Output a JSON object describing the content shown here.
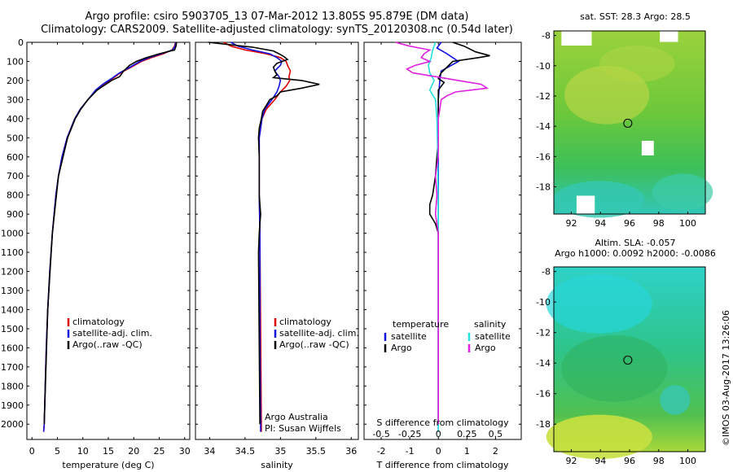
{
  "header": {
    "title_line1": "Argo profile: csiro 5903705_13 07-Mar-2012 13.805S 95.879E (DM data)",
    "title_line2": "Climatology: CARS2009. Satellite-adjusted climatology: synTS_20120308.nc (0.54d later)"
  },
  "colors": {
    "climatology": "#e00000",
    "satellite": "#1010e0",
    "argo": "#000000",
    "sal_satellite": "#20e0e0",
    "sal_argo": "#e020e0"
  },
  "chart_data": [
    {
      "id": "temperature",
      "type": "line",
      "xlabel": "temperature (deg C)",
      "ylabel": "",
      "xlim": [
        -1,
        31
      ],
      "ylim": [
        2080,
        0
      ],
      "y_reversed": true,
      "xticks": [
        0,
        5,
        10,
        15,
        20,
        25,
        30
      ],
      "yticks": [
        0,
        100,
        200,
        300,
        400,
        500,
        600,
        700,
        800,
        900,
        1000,
        1100,
        1200,
        1300,
        1400,
        1500,
        1600,
        1700,
        1800,
        1900,
        2000
      ],
      "legend": [
        "climatology",
        "satellite-adj. clim.",
        "Argo(..raw -QC)"
      ],
      "series": [
        {
          "name": "climatology",
          "depth": [
            0,
            20,
            40,
            60,
            80,
            100,
            130,
            160,
            190,
            220,
            250,
            300,
            350,
            400,
            500,
            600,
            700,
            800,
            1000,
            1200,
            1400,
            1600,
            1800,
            2000,
            2040
          ],
          "values": [
            28.2,
            28.0,
            27.5,
            25.8,
            23.5,
            21.5,
            19.5,
            17.4,
            15.8,
            14.0,
            12.6,
            11.0,
            9.5,
            8.4,
            6.9,
            5.9,
            5.2,
            4.7,
            4.0,
            3.5,
            3.1,
            2.8,
            2.6,
            2.4,
            2.3
          ]
        },
        {
          "name": "satellite-adj. clim.",
          "depth": [
            0,
            20,
            40,
            60,
            80,
            100,
            130,
            160,
            190,
            220,
            250,
            300,
            350,
            400,
            500,
            600,
            700,
            800,
            1000,
            1200,
            1400,
            1600,
            1800,
            2000,
            2040
          ],
          "values": [
            28.3,
            28.1,
            27.6,
            25.4,
            23.0,
            21.2,
            19.3,
            17.2,
            15.6,
            13.9,
            12.5,
            11.0,
            9.5,
            8.4,
            6.9,
            5.9,
            5.2,
            4.7,
            4.0,
            3.5,
            3.1,
            2.8,
            2.6,
            2.4,
            2.3
          ]
        },
        {
          "name": "Argo(..raw -QC)",
          "depth": [
            0,
            20,
            40,
            60,
            80,
            100,
            120,
            150,
            180,
            200,
            250,
            300,
            350,
            400,
            500,
            700,
            1000,
            1400,
            2000
          ],
          "values": [
            28.4,
            28.3,
            28.0,
            25.0,
            22.5,
            20.5,
            19.2,
            18.0,
            17.2,
            15.6,
            12.8,
            11.0,
            9.6,
            8.5,
            7.0,
            5.2,
            4.0,
            3.1,
            2.4
          ]
        }
      ]
    },
    {
      "id": "salinity",
      "type": "line",
      "xlabel": "salinity",
      "ylabel": "",
      "xlim": [
        33.8,
        36.1
      ],
      "ylim": [
        2080,
        0
      ],
      "y_reversed": true,
      "xticks": [
        34,
        34.5,
        35,
        35.5,
        36
      ],
      "legend": [
        "climatology",
        "satellite-adj. clim.",
        "Argo(..raw -QC)"
      ],
      "annotation": [
        "Argo Australia",
        "PI: Susan Wijffels"
      ],
      "series": [
        {
          "name": "climatology",
          "depth": [
            0,
            20,
            40,
            60,
            80,
            100,
            120,
            150,
            180,
            200,
            230,
            260,
            300,
            350,
            400,
            450,
            500,
            600,
            800,
            1000,
            1500,
            2000,
            2040
          ],
          "values": [
            34.2,
            34.3,
            34.5,
            34.8,
            35.0,
            35.08,
            35.1,
            35.14,
            35.12,
            35.13,
            35.08,
            35.0,
            34.92,
            34.8,
            34.74,
            34.72,
            34.7,
            34.7,
            34.7,
            34.71,
            34.72,
            34.73,
            34.73
          ]
        },
        {
          "name": "satellite-adj. clim.",
          "depth": [
            0,
            20,
            40,
            60,
            80,
            100,
            120,
            150,
            180,
            200,
            230,
            260,
            300,
            350,
            400,
            450,
            500,
            600,
            800,
            1000,
            1500,
            2000,
            2040
          ],
          "values": [
            34.3,
            34.4,
            34.6,
            34.85,
            34.95,
            35.02,
            35.0,
            34.92,
            34.98,
            35.0,
            34.98,
            34.95,
            34.88,
            34.78,
            34.74,
            34.72,
            34.7,
            34.7,
            34.7,
            34.71,
            34.71,
            34.72,
            34.72
          ]
        },
        {
          "name": "Argo(..raw -QC)",
          "depth": [
            0,
            25,
            45,
            60,
            75,
            90,
            110,
            130,
            150,
            170,
            185,
            200,
            220,
            240,
            260,
            280,
            300,
            330,
            360,
            400,
            450,
            500,
            600,
            800,
            900,
            1000,
            1100,
            2000
          ],
          "values": [
            33.98,
            34.6,
            34.9,
            34.98,
            35.05,
            35.1,
            34.95,
            34.9,
            34.92,
            34.95,
            34.9,
            35.3,
            35.55,
            35.3,
            35.0,
            34.95,
            34.85,
            34.8,
            34.75,
            34.73,
            34.7,
            34.69,
            34.7,
            34.7,
            34.72,
            34.7,
            34.69,
            34.71
          ]
        }
      ]
    },
    {
      "id": "differences",
      "type": "line",
      "xlabel": "T difference from climatology",
      "ylabel": "",
      "xlim": [
        -2.6,
        2.9
      ],
      "ylim": [
        2080,
        0
      ],
      "y_reversed": true,
      "xticks": [
        -2,
        -1,
        0,
        1,
        2
      ],
      "top_axis_label": "S difference from climatology",
      "top_ticks": [
        "-0.5",
        "-0.25",
        "0",
        "0.25",
        "0.5"
      ],
      "top_tick_values": [
        -2,
        -1,
        0,
        1,
        2
      ],
      "legend_headers": [
        "temperature",
        "salinity"
      ],
      "legend": [
        "satellite",
        "Argo",
        "satellite",
        "Argo"
      ],
      "series": [
        {
          "name": "temperature satellite",
          "depth": [
            0,
            30,
            60,
            100,
            150,
            200,
            300,
            500,
            800,
            1200,
            2000,
            2040
          ],
          "values": [
            0.1,
            -0.05,
            0.3,
            0.7,
            0.1,
            0.05,
            0.0,
            0.0,
            0.0,
            0.0,
            0.0,
            0.0
          ]
        },
        {
          "name": "temperature Argo",
          "depth": [
            0,
            20,
            50,
            70,
            80,
            100,
            130,
            160,
            190,
            210,
            230,
            250,
            300,
            400,
            500,
            700,
            800,
            850,
            900,
            950,
            1000,
            1100,
            1300,
            1600,
            2000
          ],
          "values": [
            0.5,
            0.9,
            1.3,
            1.8,
            1.4,
            0.5,
            0.3,
            0.1,
            0.0,
            0.2,
            0.1,
            0.0,
            0.0,
            0.0,
            0.0,
            -0.1,
            -0.2,
            -0.3,
            -0.3,
            -0.1,
            0.0,
            0.0,
            0.0,
            0.0,
            0.0
          ]
        },
        {
          "name": "salinity satellite",
          "depth": [
            0,
            40,
            80,
            120,
            160,
            200,
            250,
            300,
            400,
            600,
            900,
            1200,
            1600,
            2000,
            2040
          ],
          "values": [
            -0.1,
            -0.2,
            -0.25,
            -0.35,
            -0.3,
            -0.15,
            -0.3,
            -0.1,
            -0.05,
            -0.02,
            0.0,
            0.0,
            0.0,
            0.0,
            0.0
          ]
        },
        {
          "name": "salinity Argo",
          "depth": [
            0,
            20,
            40,
            60,
            80,
            100,
            120,
            140,
            160,
            180,
            200,
            220,
            240,
            260,
            280,
            300,
            350,
            400,
            500,
            600,
            700,
            800,
            900,
            1000,
            1100,
            1300,
            1600,
            2000
          ],
          "values": [
            -1.5,
            -1.0,
            -0.3,
            -0.5,
            -0.6,
            -0.3,
            -0.8,
            -1.1,
            -0.9,
            -0.1,
            0.7,
            1.5,
            1.7,
            0.6,
            0.3,
            0.1,
            0.05,
            0.0,
            0.0,
            0.0,
            -0.1,
            -0.05,
            -0.1,
            0.0,
            0.0,
            0.0,
            0.0,
            0.0
          ]
        }
      ]
    }
  ],
  "maps": [
    {
      "id": "sst",
      "title_lines": [
        "sat. SST: 28.3 Argo: 28.5"
      ],
      "xticks": [
        "92",
        "94",
        "96",
        "98",
        "100"
      ],
      "yticks": [
        "-8",
        "-10",
        "-12",
        "-14",
        "-16",
        "-18"
      ],
      "marker": {
        "lon": 95.88,
        "lat": -13.8
      }
    },
    {
      "id": "sla",
      "title_lines": [
        "Altim. SLA: -0.057",
        "Argo h1000: 0.0092 h2000: -0.0086"
      ],
      "xticks": [
        "92",
        "94",
        "96",
        "98",
        "100"
      ],
      "yticks": [
        "-8",
        "-10",
        "-12",
        "-14",
        "-16",
        "-18"
      ],
      "marker": {
        "lon": 95.88,
        "lat": -13.8
      }
    }
  ],
  "footer": {
    "side_stamp": "©IMOS 03-Aug-2017 13:26:06"
  }
}
